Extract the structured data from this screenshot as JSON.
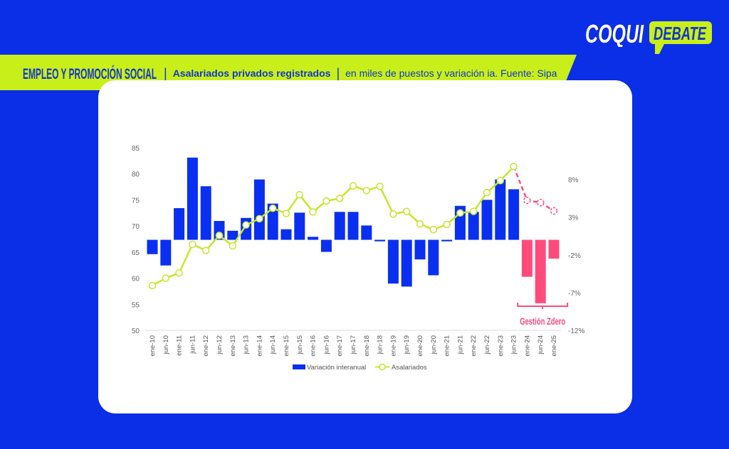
{
  "header": {
    "section": "EMPLEO Y PROMOCIÓN SOCIAL",
    "separator": "|",
    "subtitle": "Asalariados privados registrados",
    "separator2": "|",
    "detail": "en miles de puestos y variación ia. Fuente: Sipa"
  },
  "logo": {
    "part1": "COQUI",
    "part2": "DEBATE"
  },
  "colors": {
    "background": "#0b2fe6",
    "banner": "#c9ef1b",
    "bar": "#0a2ff0",
    "bar_highlight": "#ff4b7b",
    "line": "#c5e82a",
    "line_highlight": "#ff4b7b"
  },
  "chart_data": {
    "type": "bar+line",
    "categories": [
      "ene-10",
      "jun-10",
      "ene-11",
      "jun-11",
      "ene-12",
      "jun-12",
      "ene-13",
      "jun-13",
      "ene-14",
      "jun-14",
      "ene-15",
      "jun-15",
      "ene-16",
      "jun-16",
      "ene-17",
      "jun-17",
      "ene-18",
      "jun-18",
      "ene-19",
      "jun-19",
      "ene-20",
      "jun-20",
      "ene-21",
      "jun-21",
      "ene-22",
      "jun-22",
      "ene-23",
      "jun-23",
      "ene-24",
      "jun-24",
      "ene-25"
    ],
    "series": [
      {
        "name": "Variación interanual",
        "type": "bar",
        "axis": "right",
        "unit": "%",
        "values": [
          -1.9,
          -3.4,
          4.2,
          10.9,
          7.1,
          2.5,
          1.2,
          2.9,
          8.0,
          4.8,
          1.4,
          3.6,
          0.4,
          -1.6,
          3.7,
          3.7,
          1.9,
          -0.2,
          -5.8,
          -6.2,
          -2.6,
          -4.7,
          -0.2,
          4.5,
          3.7,
          5.3,
          8.0,
          6.7,
          -4.9,
          -8.4,
          -2.5
        ]
      },
      {
        "name": "Asalariados",
        "type": "line",
        "axis": "left",
        "values": [
          58.6,
          60.0,
          61.0,
          66.5,
          65.3,
          68.2,
          66.2,
          70.2,
          71.4,
          73.4,
          72.4,
          76.0,
          72.7,
          74.8,
          75.3,
          77.7,
          76.8,
          77.6,
          72.3,
          72.8,
          70.4,
          69.3,
          70.3,
          72.5,
          72.8,
          76.4,
          78.7,
          81.4,
          74.9,
          74.5,
          72.9
        ]
      }
    ],
    "highlight_from": "ene-24",
    "highlight_label": "Gestión Zdero",
    "y_left": {
      "range": [
        50,
        85
      ],
      "ticks": [
        "50",
        "55",
        "60",
        "65",
        "70",
        "75",
        "80",
        "85"
      ]
    },
    "y_right": {
      "range": [
        -12,
        12.2
      ],
      "ticks": [
        "-12%",
        "-7%",
        "-2%",
        "3%",
        "8%"
      ]
    },
    "grid": false,
    "legend": "bottom"
  }
}
